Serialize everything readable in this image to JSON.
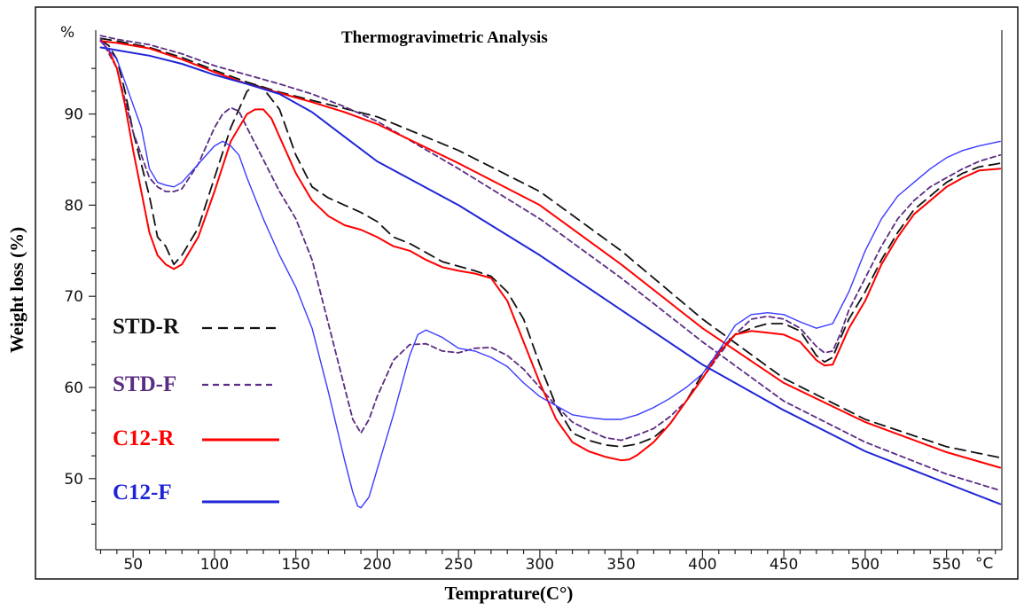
{
  "chart_data": {
    "type": "line",
    "title": "Thermogravimetric Analysis",
    "xlabel": "Temprature(C°)",
    "ylabel": "Weight loss (%)",
    "y_unit_label": "%",
    "x_unit_label": "°C",
    "xlim": [
      27,
      584
    ],
    "ylim": [
      42.2,
      99.2
    ],
    "x_ticks": [
      50,
      100,
      150,
      200,
      250,
      300,
      350,
      400,
      450,
      500,
      550
    ],
    "y_ticks": [
      50,
      60,
      70,
      80,
      90
    ],
    "grid": false,
    "legend_position": "left",
    "series": [
      {
        "name": "STD-R",
        "kind": "weight",
        "color": "#111111",
        "dash": "dashed",
        "x": [
          30,
          40,
          60,
          80,
          100,
          120,
          140,
          160,
          180,
          200,
          250,
          300,
          350,
          400,
          450,
          500,
          550,
          583
        ],
        "y": [
          98.3,
          98.0,
          97.3,
          96.2,
          94.8,
          93.5,
          92.4,
          91.5,
          90.6,
          89.7,
          86.0,
          81.5,
          75.0,
          67.5,
          61.0,
          56.5,
          53.5,
          52.3
        ]
      },
      {
        "name": "STD-R",
        "kind": "derivative",
        "color": "#111111",
        "dash": "dashed",
        "x": [
          30,
          35,
          40,
          45,
          50,
          55,
          60,
          65,
          70,
          75,
          80,
          90,
          100,
          110,
          120,
          125,
          130,
          140,
          150,
          160,
          170,
          180,
          190,
          200,
          210,
          220,
          230,
          240,
          250,
          260,
          270,
          280,
          290,
          300,
          310,
          320,
          330,
          340,
          350,
          360,
          370,
          380,
          390,
          400,
          410,
          420,
          430,
          440,
          450,
          460,
          470,
          475,
          480,
          485,
          490,
          500,
          510,
          520,
          530,
          540,
          550,
          560,
          570,
          580,
          583
        ],
        "y": [
          98.1,
          97.5,
          96.0,
          92.5,
          88.0,
          84.5,
          81.0,
          76.5,
          75.5,
          73.5,
          74.5,
          77.5,
          83.0,
          88.5,
          92.5,
          93.2,
          92.8,
          90.5,
          85.5,
          82.0,
          80.8,
          80.0,
          79.2,
          78.2,
          76.5,
          75.8,
          74.8,
          73.8,
          73.3,
          72.8,
          72.2,
          70.5,
          67.5,
          62.5,
          58.0,
          55.0,
          54.2,
          53.7,
          53.5,
          53.8,
          54.5,
          56.0,
          58.5,
          61.5,
          64.0,
          65.8,
          66.5,
          67.0,
          67.0,
          66.2,
          63.5,
          62.8,
          63.3,
          65.5,
          67.5,
          70.5,
          74.0,
          77.0,
          79.5,
          81.0,
          82.5,
          83.5,
          84.2,
          84.5,
          84.6
        ]
      },
      {
        "name": "STD-F",
        "kind": "weight",
        "color": "#5b2c83",
        "dash": "dotted",
        "x": [
          30,
          40,
          60,
          80,
          100,
          120,
          140,
          160,
          180,
          200,
          250,
          300,
          350,
          400,
          450,
          500,
          550,
          583
        ],
        "y": [
          98.6,
          98.2,
          97.6,
          96.6,
          95.3,
          94.3,
          93.3,
          92.2,
          90.8,
          89.2,
          84.0,
          78.5,
          72.0,
          65.0,
          58.5,
          54.0,
          50.5,
          48.7
        ]
      },
      {
        "name": "STD-F",
        "kind": "derivative",
        "color": "#5b2c83",
        "dash": "dotted",
        "x": [
          30,
          40,
          50,
          60,
          65,
          70,
          75,
          80,
          90,
          100,
          105,
          110,
          115,
          120,
          130,
          140,
          150,
          160,
          170,
          180,
          185,
          190,
          195,
          200,
          210,
          220,
          230,
          240,
          250,
          260,
          270,
          280,
          290,
          300,
          310,
          320,
          330,
          340,
          350,
          360,
          370,
          380,
          390,
          400,
          410,
          420,
          430,
          440,
          450,
          460,
          470,
          475,
          480,
          485,
          490,
          500,
          510,
          520,
          530,
          540,
          550,
          560,
          570,
          583
        ],
        "y": [
          98.3,
          95.0,
          88.0,
          83.0,
          82.0,
          81.5,
          81.5,
          81.8,
          84.5,
          88.5,
          90.0,
          90.7,
          90.3,
          88.5,
          85.0,
          81.5,
          78.5,
          74.0,
          67.0,
          60.0,
          56.5,
          55.0,
          56.5,
          59.0,
          63.0,
          64.7,
          64.8,
          64.0,
          63.8,
          64.3,
          64.4,
          63.5,
          62.0,
          60.0,
          58.0,
          56.2,
          55.3,
          54.5,
          54.2,
          54.8,
          55.5,
          56.8,
          58.5,
          61.0,
          63.5,
          65.8,
          67.5,
          67.8,
          67.5,
          66.5,
          64.5,
          63.8,
          64.0,
          66.0,
          68.5,
          72.0,
          75.5,
          78.5,
          80.5,
          82.0,
          83.0,
          84.0,
          84.8,
          85.5
        ]
      },
      {
        "name": "C12-R",
        "kind": "weight",
        "color": "#ff0000",
        "dash": "solid",
        "x": [
          30,
          40,
          60,
          80,
          100,
          120,
          140,
          160,
          180,
          200,
          250,
          300,
          350,
          400,
          450,
          500,
          550,
          583
        ],
        "y": [
          98.0,
          97.8,
          97.2,
          96.0,
          94.6,
          93.3,
          92.3,
          91.3,
          90.2,
          88.9,
          84.6,
          80.0,
          73.5,
          66.5,
          60.5,
          56.2,
          52.9,
          51.2
        ]
      },
      {
        "name": "C12-R",
        "kind": "derivative",
        "color": "#ff0000",
        "dash": "solid",
        "x": [
          30,
          35,
          40,
          45,
          50,
          55,
          60,
          65,
          70,
          75,
          80,
          90,
          100,
          110,
          120,
          125,
          130,
          135,
          140,
          150,
          160,
          170,
          180,
          190,
          200,
          210,
          220,
          230,
          240,
          250,
          260,
          270,
          280,
          290,
          300,
          310,
          320,
          330,
          340,
          350,
          355,
          360,
          370,
          380,
          390,
          400,
          410,
          420,
          430,
          440,
          450,
          460,
          470,
          475,
          480,
          485,
          490,
          500,
          510,
          520,
          530,
          540,
          550,
          560,
          570,
          583
        ],
        "y": [
          98.0,
          97.0,
          95.0,
          91.0,
          86.0,
          81.5,
          77.0,
          74.5,
          73.5,
          73.0,
          73.5,
          76.5,
          81.5,
          87.0,
          90.0,
          90.5,
          90.5,
          89.5,
          87.5,
          83.5,
          80.5,
          78.8,
          77.8,
          77.3,
          76.5,
          75.5,
          75.0,
          74.0,
          73.2,
          72.8,
          72.5,
          72.0,
          69.5,
          65.0,
          60.5,
          56.5,
          54.0,
          53.0,
          52.4,
          52.0,
          52.1,
          52.6,
          54.0,
          56.0,
          58.5,
          61.0,
          63.8,
          65.8,
          66.2,
          66.0,
          65.8,
          65.0,
          63.0,
          62.4,
          62.5,
          64.5,
          66.5,
          69.5,
          73.5,
          76.5,
          79.0,
          80.5,
          82.0,
          83.0,
          83.8,
          84.0
        ]
      },
      {
        "name": "C12-F",
        "kind": "weight",
        "color": "#1f25d6",
        "dash": "solid",
        "x": [
          30,
          40,
          60,
          80,
          100,
          120,
          140,
          160,
          180,
          200,
          250,
          300,
          350,
          400,
          450,
          500,
          550,
          583
        ],
        "y": [
          97.3,
          97.0,
          96.4,
          95.5,
          94.3,
          93.3,
          92.2,
          90.2,
          87.5,
          84.8,
          80.0,
          74.5,
          68.5,
          62.5,
          57.5,
          53.0,
          49.5,
          47.2
        ]
      },
      {
        "name": "C12-F",
        "kind": "derivative",
        "color": "#3b3bff",
        "dash": "solid",
        "x": [
          30,
          40,
          50,
          55,
          60,
          65,
          70,
          75,
          80,
          90,
          100,
          105,
          110,
          115,
          120,
          130,
          140,
          150,
          160,
          170,
          180,
          185,
          188,
          190,
          195,
          200,
          210,
          220,
          225,
          230,
          240,
          250,
          260,
          270,
          280,
          290,
          300,
          310,
          320,
          330,
          340,
          350,
          360,
          370,
          380,
          390,
          400,
          410,
          420,
          430,
          440,
          450,
          460,
          470,
          480,
          490,
          500,
          510,
          520,
          530,
          540,
          550,
          560,
          570,
          583
        ],
        "y": [
          98.0,
          96.0,
          91.0,
          88.5,
          84.0,
          82.5,
          82.2,
          82.0,
          82.5,
          84.5,
          86.5,
          87.0,
          86.5,
          85.5,
          83.0,
          78.5,
          74.5,
          71.0,
          66.5,
          59.5,
          52.0,
          48.5,
          47.0,
          46.8,
          48.0,
          51.0,
          57.0,
          63.5,
          65.8,
          66.3,
          65.5,
          64.3,
          64.0,
          63.3,
          62.3,
          60.5,
          59.0,
          58.0,
          57.0,
          56.7,
          56.5,
          56.5,
          57.0,
          57.8,
          58.8,
          60.0,
          61.5,
          64.0,
          66.8,
          68.0,
          68.2,
          68.0,
          67.2,
          66.5,
          67.0,
          70.5,
          75.0,
          78.5,
          81.0,
          82.5,
          84.0,
          85.2,
          86.0,
          86.5,
          87.0
        ]
      }
    ],
    "legend": [
      {
        "label": "STD-R",
        "color": "#111111",
        "dash": "dashed"
      },
      {
        "label": "STD-F",
        "color": "#5b2c83",
        "dash": "dotted"
      },
      {
        "label": "C12-R",
        "color": "#ff0000",
        "dash": "solid"
      },
      {
        "label": "C12-F",
        "color": "#1f25d6",
        "dash": "solid"
      }
    ]
  }
}
